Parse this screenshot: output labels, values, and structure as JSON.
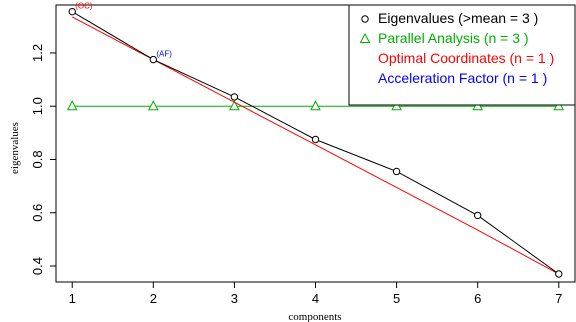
{
  "chart_data": {
    "type": "line",
    "xlabel": "components",
    "ylabel": "eigenvalues",
    "xlim": [
      0.8,
      7.2
    ],
    "ylim": [
      0.34,
      1.38
    ],
    "x_ticks": [
      1,
      2,
      3,
      4,
      5,
      6,
      7
    ],
    "y_ticks": [
      0.4,
      0.6,
      0.8,
      1.0,
      1.2
    ],
    "grid": false,
    "legend_position": "top-right",
    "series": [
      {
        "name": "Eigenvalues (>mean  =  3 )",
        "style": "line with open circles",
        "color": "#000000",
        "x": [
          1,
          2,
          3,
          4,
          5,
          6,
          7
        ],
        "y": [
          1.355,
          1.175,
          1.035,
          0.875,
          0.755,
          0.59,
          0.37
        ]
      },
      {
        "name": "Parallel Analysis (n =  3 )",
        "style": "line with open triangles",
        "color": "#00b000",
        "x": [
          1,
          2,
          3,
          4,
          5,
          6,
          7
        ],
        "y": [
          1.0,
          1.0,
          1.0,
          1.0,
          1.0,
          1.0,
          1.0
        ]
      },
      {
        "name": "Optimal Coordinates (n =  1 )",
        "style": "line",
        "color": "#ff0000",
        "x": [
          1,
          2,
          3,
          4,
          5,
          6,
          7
        ],
        "y": [
          1.335,
          1.175,
          1.015,
          0.855,
          0.695,
          0.535,
          0.37
        ]
      },
      {
        "name": "Acceleration Factor (n =  1 )",
        "style": "legend only",
        "color": "#0000ff",
        "x": [],
        "y": []
      }
    ],
    "annotations": [
      {
        "text": "(OC)",
        "x": 1,
        "y": 1.355,
        "color": "#ff0000"
      },
      {
        "text": "(AF)",
        "x": 2,
        "y": 1.175,
        "color": "#0000ff"
      }
    ]
  }
}
